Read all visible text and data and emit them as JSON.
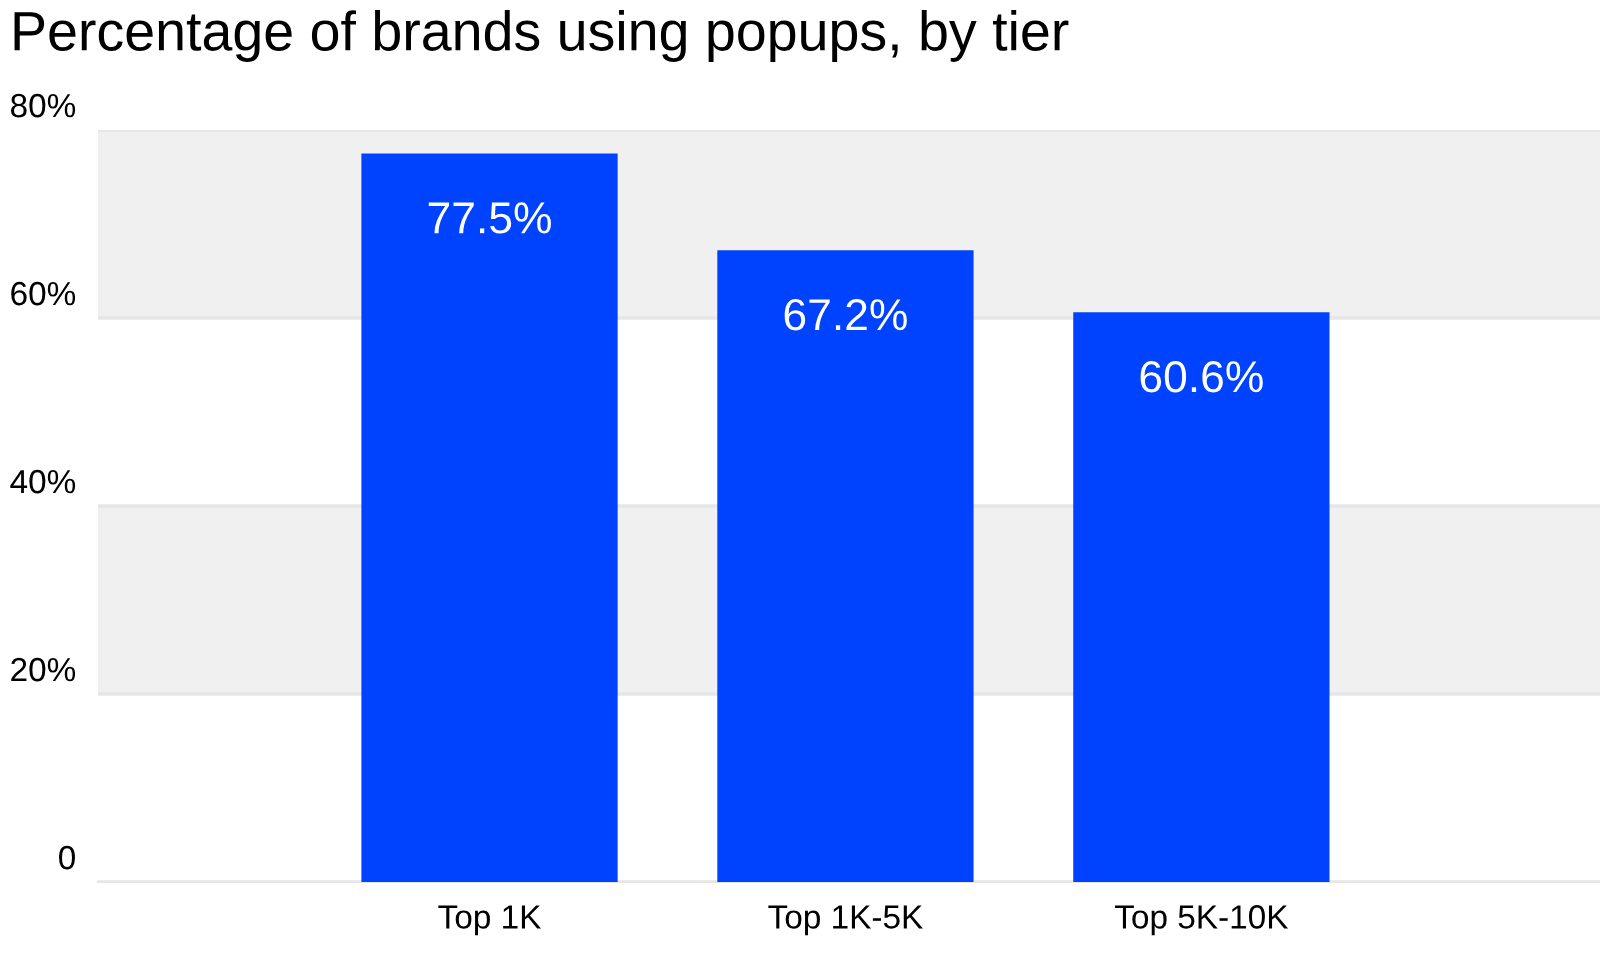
{
  "chart_data": {
    "type": "bar",
    "title": "Percentage of brands using popups, by tier",
    "categories": [
      "Top 1K",
      "Top 1K-5K",
      "Top 5K-10K"
    ],
    "values": [
      77.5,
      67.2,
      60.6
    ],
    "color": "#0043ff",
    "value_labels": [
      "77.5%",
      "67.2%",
      "60.6%"
    ],
    "ylim": [
      0,
      80
    ],
    "yticks": [
      0,
      {
        "value": 20,
        "label": "20%"
      },
      {
        "value": 40,
        "label": "40%"
      },
      {
        "value": 60,
        "label": "60%"
      },
      {
        "value": 80,
        "label": "80%"
      }
    ],
    "bands": [
      {
        "axis": "y",
        "from": 20,
        "to": 40,
        "color": "#f0f0f0"
      },
      {
        "axis": "y",
        "from": 60,
        "to": 80,
        "color": "#f0f0f0"
      }
    ],
    "grid": "y",
    "legend": false
  }
}
